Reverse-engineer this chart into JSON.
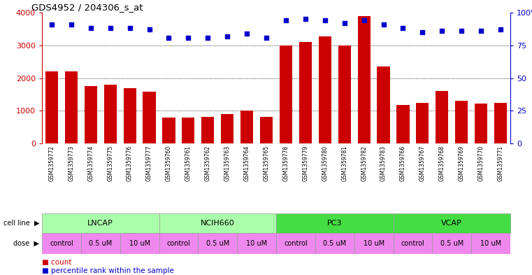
{
  "title": "GDS4952 / 204306_s_at",
  "samples": [
    "GSM1359772",
    "GSM1359773",
    "GSM1359774",
    "GSM1359775",
    "GSM1359776",
    "GSM1359777",
    "GSM1359760",
    "GSM1359761",
    "GSM1359762",
    "GSM1359763",
    "GSM1359764",
    "GSM1359765",
    "GSM1359778",
    "GSM1359779",
    "GSM1359780",
    "GSM1359781",
    "GSM1359782",
    "GSM1359783",
    "GSM1359766",
    "GSM1359767",
    "GSM1359768",
    "GSM1359769",
    "GSM1359770",
    "GSM1359771"
  ],
  "counts": [
    2200,
    2200,
    1750,
    1800,
    1700,
    1580,
    800,
    800,
    820,
    900,
    1010,
    820,
    3000,
    3100,
    3280,
    3000,
    3900,
    2350,
    1180,
    1250,
    1600,
    1300,
    1220,
    1250
  ],
  "percentiles": [
    91,
    91,
    88,
    88,
    88,
    87,
    81,
    81,
    81,
    82,
    84,
    81,
    94,
    95,
    94,
    92,
    94,
    91,
    88,
    85,
    86,
    86,
    86,
    87
  ],
  "bar_color": "#CC0000",
  "dot_color": "#0000CC",
  "left_axis_color": "#CC0000",
  "right_axis_color": "#0000CC",
  "ylim_left": [
    0,
    4000
  ],
  "ylim_right": [
    0,
    100
  ],
  "yticks_left": [
    0,
    1000,
    2000,
    3000,
    4000
  ],
  "yticks_right": [
    0,
    25,
    50,
    75,
    100
  ],
  "legend_count_color": "#CC0000",
  "legend_pct_color": "#0000CC",
  "xlabels_bg": "#c8c8c8",
  "cell_lines": [
    {
      "name": "LNCAP",
      "start": 0,
      "end": 6,
      "color": "#aaffaa"
    },
    {
      "name": "NCIH660",
      "start": 6,
      "end": 12,
      "color": "#aaffaa"
    },
    {
      "name": "PC3",
      "start": 12,
      "end": 18,
      "color": "#44dd44"
    },
    {
      "name": "VCAP",
      "start": 18,
      "end": 24,
      "color": "#44dd44"
    }
  ],
  "dose_groups": [
    {
      "name": "control",
      "start": 0,
      "end": 2,
      "color": "#ee88ee"
    },
    {
      "name": "0.5 uM",
      "start": 2,
      "end": 4,
      "color": "#ee88ee"
    },
    {
      "name": "10 uM",
      "start": 4,
      "end": 6,
      "color": "#ee88ee"
    },
    {
      "name": "control",
      "start": 6,
      "end": 8,
      "color": "#ee88ee"
    },
    {
      "name": "0.5 uM",
      "start": 8,
      "end": 10,
      "color": "#ee88ee"
    },
    {
      "name": "10 uM",
      "start": 10,
      "end": 12,
      "color": "#ee88ee"
    },
    {
      "name": "control",
      "start": 12,
      "end": 14,
      "color": "#ee88ee"
    },
    {
      "name": "0.5 uM",
      "start": 14,
      "end": 16,
      "color": "#ee88ee"
    },
    {
      "name": "10 uM",
      "start": 16,
      "end": 18,
      "color": "#ee88ee"
    },
    {
      "name": "control",
      "start": 18,
      "end": 20,
      "color": "#ee88ee"
    },
    {
      "name": "0.5 uM",
      "start": 20,
      "end": 22,
      "color": "#ee88ee"
    },
    {
      "name": "10 uM",
      "start": 22,
      "end": 24,
      "color": "#ee88ee"
    }
  ]
}
